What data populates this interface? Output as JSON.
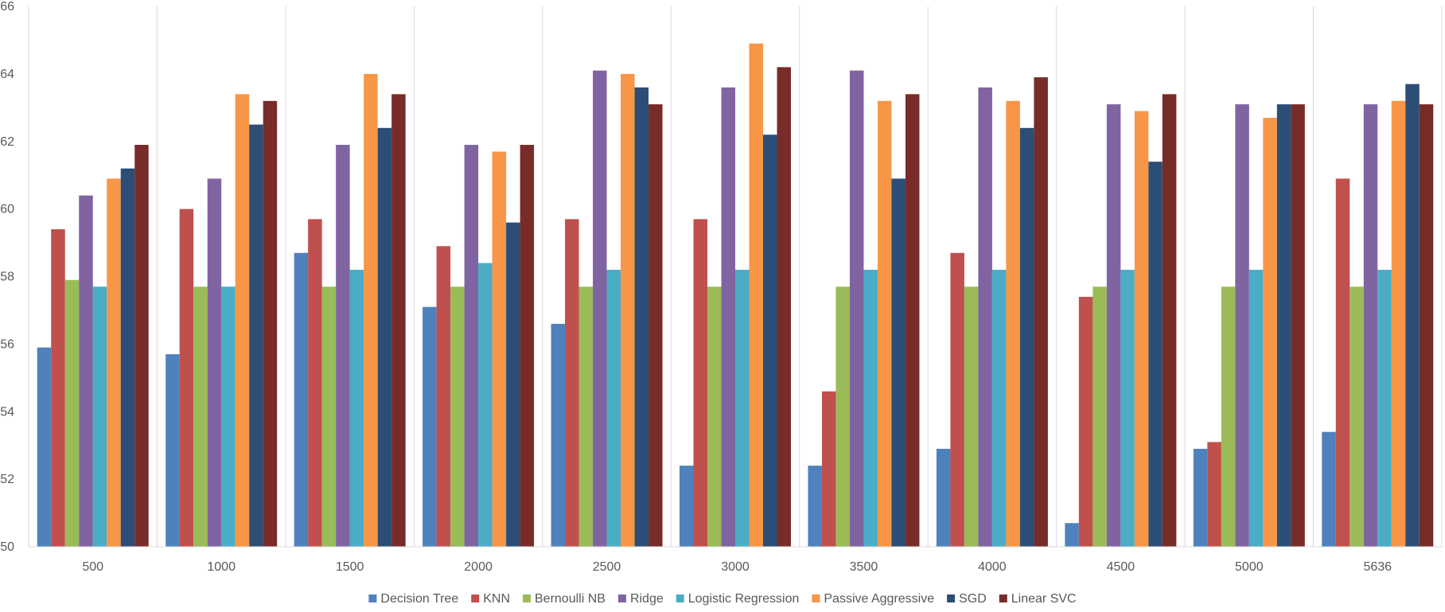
{
  "chart_data": {
    "type": "bar",
    "title": "",
    "xlabel": "",
    "ylabel": "",
    "ylim": [
      50,
      66
    ],
    "yticks": [
      50,
      52,
      54,
      56,
      58,
      60,
      62,
      64,
      66
    ],
    "grid": "vertical category separators",
    "legend_position": "bottom",
    "categories": [
      "500",
      "1000",
      "1500",
      "2000",
      "2500",
      "3000",
      "3500",
      "4000",
      "4500",
      "5000",
      "5636"
    ],
    "series": [
      {
        "name": "Decision Tree",
        "color": "#4f81bd",
        "values": [
          55.9,
          55.7,
          58.7,
          57.1,
          56.6,
          52.4,
          52.4,
          52.9,
          50.7,
          52.9,
          53.4
        ]
      },
      {
        "name": "KNN",
        "color": "#c0504d",
        "values": [
          59.4,
          60.0,
          59.7,
          58.9,
          59.7,
          59.7,
          54.6,
          58.7,
          57.4,
          53.1,
          60.9
        ]
      },
      {
        "name": "Bernoulli NB",
        "color": "#9bbb59",
        "values": [
          57.9,
          57.7,
          57.7,
          57.7,
          57.7,
          57.7,
          57.7,
          57.7,
          57.7,
          57.7,
          57.7
        ]
      },
      {
        "name": "Ridge",
        "color": "#8064a2",
        "values": [
          60.4,
          60.9,
          61.9,
          61.9,
          64.1,
          63.6,
          64.1,
          63.6,
          63.1,
          63.1,
          63.1
        ]
      },
      {
        "name": "Logistic Regression",
        "color": "#4bacc6",
        "values": [
          57.7,
          57.7,
          58.2,
          58.4,
          58.2,
          58.2,
          58.2,
          58.2,
          58.2,
          58.2,
          58.2
        ]
      },
      {
        "name": "Passive Aggressive",
        "color": "#f79646",
        "values": [
          60.9,
          63.4,
          64.0,
          61.7,
          64.0,
          64.9,
          63.2,
          63.2,
          62.9,
          62.7,
          63.2
        ]
      },
      {
        "name": "SGD",
        "color": "#2c4d75",
        "values": [
          61.2,
          62.5,
          62.4,
          59.6,
          63.6,
          62.2,
          60.9,
          62.4,
          61.4,
          63.1,
          63.7
        ]
      },
      {
        "name": "Linear SVC",
        "color": "#772c2a",
        "values": [
          61.9,
          63.2,
          63.4,
          61.9,
          63.1,
          64.2,
          63.4,
          63.9,
          63.4,
          63.1,
          63.1
        ]
      }
    ]
  }
}
